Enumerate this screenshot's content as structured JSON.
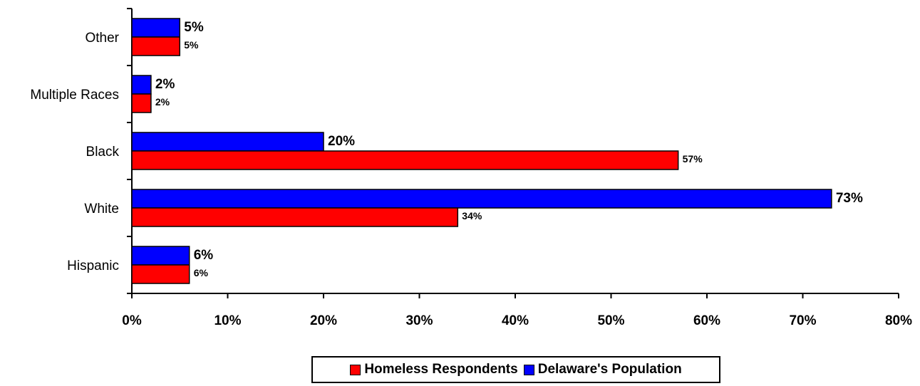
{
  "chart_data": {
    "type": "bar",
    "orientation": "horizontal",
    "categories": [
      "Hispanic",
      "White",
      "Black",
      "Multiple Races",
      "Other"
    ],
    "series": [
      {
        "name": "Homeless Respondents",
        "color": "#ff0000",
        "values": [
          6,
          34,
          57,
          2,
          5
        ],
        "labels": [
          "6%",
          "34%",
          "57%",
          "2%",
          "5%"
        ]
      },
      {
        "name": "Delaware's Population",
        "color": "#0000ff",
        "values": [
          6,
          73,
          20,
          2,
          5
        ],
        "labels": [
          "6%",
          "73%",
          "20%",
          "2%",
          "5%"
        ]
      }
    ],
    "xticks": [
      "0%",
      "10%",
      "20%",
      "30%",
      "40%",
      "50%",
      "60%",
      "70%",
      "80%"
    ],
    "xlim": [
      0,
      80
    ],
    "xlabel": "",
    "ylabel": "",
    "title": "",
    "grid": false,
    "legend_position": "bottom"
  }
}
